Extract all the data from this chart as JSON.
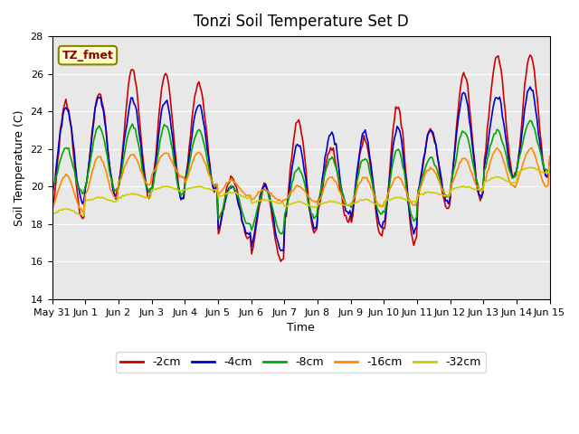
{
  "title": "Tonzi Soil Temperature Set D",
  "xlabel": "Time",
  "ylabel": "Soil Temperature (C)",
  "ylim": [
    14,
    28
  ],
  "xlim": [
    0,
    15
  ],
  "legend_label": "TZ_fmet",
  "series_labels": [
    "-2cm",
    "-4cm",
    "-8cm",
    "-16cm",
    "-32cm"
  ],
  "series_colors": [
    "#cc0000",
    "#0000cc",
    "#00aa00",
    "#ff8800",
    "#cccc00"
  ],
  "bg_color": "#e8e8e8",
  "xtick_labels": [
    "May 31",
    "Jun 1",
    "Jun 2",
    "Jun 3",
    "Jun 4",
    "Jun 5",
    "Jun 6",
    "Jun 7",
    "Jun 8",
    "Jun 9",
    "Jun 10",
    "Jun 11",
    "Jun 12",
    "Jun 13",
    "Jun 14",
    "Jun 15"
  ],
  "xtick_positions": [
    0,
    1,
    2,
    3,
    4,
    5,
    6,
    7,
    8,
    9,
    10,
    11,
    12,
    13,
    14,
    15
  ]
}
